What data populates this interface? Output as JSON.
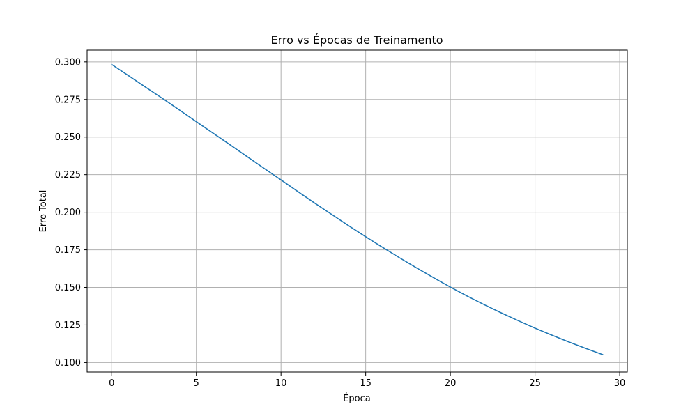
{
  "chart_data": {
    "type": "line",
    "title": "Erro vs Épocas de Treinamento",
    "xlabel": "Época",
    "ylabel": "Erro Total",
    "xlim": [
      -1.45,
      30.45
    ],
    "ylim": [
      0.0937,
      0.3078
    ],
    "x_ticks": [
      0,
      5,
      10,
      15,
      20,
      25,
      30
    ],
    "y_ticks": [
      0.1,
      0.125,
      0.15,
      0.175,
      0.2,
      0.225,
      0.25,
      0.275,
      0.3
    ],
    "x_tick_labels": [
      "0",
      "5",
      "10",
      "15",
      "20",
      "25",
      "30"
    ],
    "y_tick_labels": [
      "0.100",
      "0.125",
      "0.150",
      "0.175",
      "0.200",
      "0.225",
      "0.250",
      "0.275",
      "0.300"
    ],
    "grid": true,
    "series": [
      {
        "color": "#1f77b4",
        "x": [
          0,
          1,
          2,
          3,
          4,
          5,
          6,
          7,
          8,
          9,
          10,
          11,
          12,
          13,
          14,
          15,
          16,
          17,
          18,
          19,
          20,
          21,
          22,
          23,
          24,
          25,
          26,
          27,
          28,
          29
        ],
        "y": [
          0.2983,
          0.2908,
          0.2832,
          0.2757,
          0.268,
          0.2602,
          0.2525,
          0.2448,
          0.237,
          0.2292,
          0.2215,
          0.2137,
          0.206,
          0.1985,
          0.191,
          0.1837,
          0.1766,
          0.1697,
          0.163,
          0.1565,
          0.1502,
          0.1442,
          0.1385,
          0.1331,
          0.1279,
          0.1229,
          0.1182,
          0.1137,
          0.1094,
          0.1053
        ]
      }
    ]
  }
}
